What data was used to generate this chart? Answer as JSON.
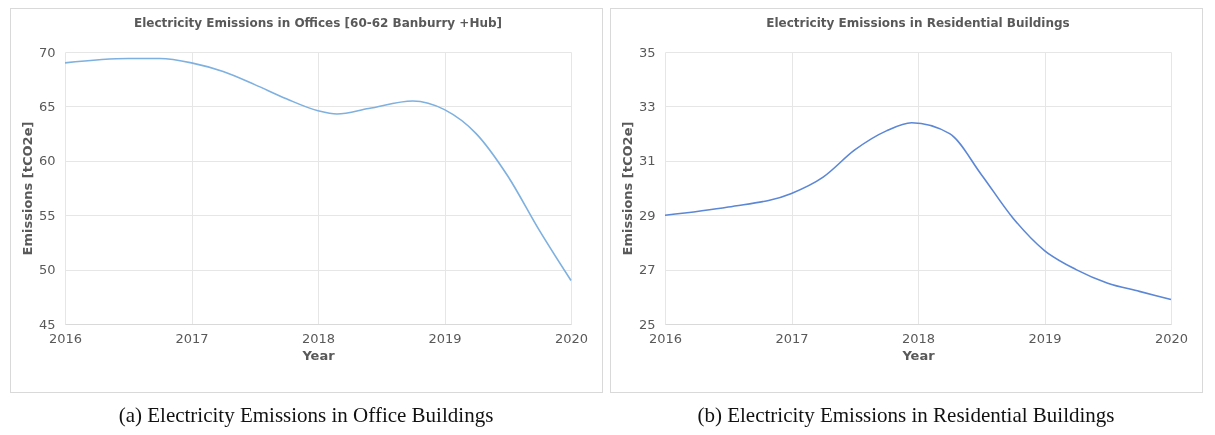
{
  "chart_data": [
    {
      "type": "line",
      "title": "Electricity Emissions in Offices [60-62 Banburry +Hub]",
      "xlabel": "Year",
      "ylabel": "Emissions [tCO2e]",
      "x": [
        2016,
        2016.5,
        2016.75,
        2017,
        2017.25,
        2017.5,
        2017.75,
        2018,
        2018.15,
        2018.4,
        2018.75,
        2019,
        2019.25,
        2019.5,
        2019.75,
        2020
      ],
      "series": [
        {
          "color": "#7eb0e0",
          "values": [
            69.0,
            69.4,
            69.4,
            69.0,
            68.2,
            67.0,
            65.7,
            64.6,
            64.3,
            64.8,
            65.5,
            64.7,
            62.5,
            58.6,
            53.6,
            49.0
          ]
        }
      ],
      "xlim": [
        2016,
        2020
      ],
      "xticks": [
        2016,
        2017,
        2018,
        2019,
        2020
      ],
      "ylim": [
        45,
        70
      ],
      "yticks": [
        45,
        50,
        55,
        60,
        65,
        70
      ],
      "grid": true,
      "annotations": [
        "(a) Electricity Emissions in Office Buildings"
      ]
    },
    {
      "type": "line",
      "title": "Electricity Emissions in Residential Buildings",
      "xlabel": "Year",
      "ylabel": "Emissions [tCO2e]",
      "x": [
        2016,
        2016.5,
        2017,
        2017.25,
        2017.5,
        2017.75,
        2017.95,
        2018.25,
        2018.5,
        2018.75,
        2019,
        2019.25,
        2019.5,
        2019.75,
        2020
      ],
      "series": [
        {
          "color": "#5b87d6",
          "values": [
            29.0,
            29.3,
            29.8,
            30.4,
            31.4,
            32.1,
            32.4,
            32.0,
            30.5,
            28.9,
            27.7,
            27.0,
            26.5,
            26.2,
            25.9
          ]
        }
      ],
      "xlim": [
        2016,
        2020
      ],
      "xticks": [
        2016,
        2017,
        2018,
        2019,
        2020
      ],
      "ylim": [
        25,
        35
      ],
      "yticks": [
        25,
        27,
        29,
        31,
        33,
        35
      ],
      "grid": true,
      "annotations": [
        "(b) Electricity Emissions in Residential Buildings"
      ]
    }
  ]
}
